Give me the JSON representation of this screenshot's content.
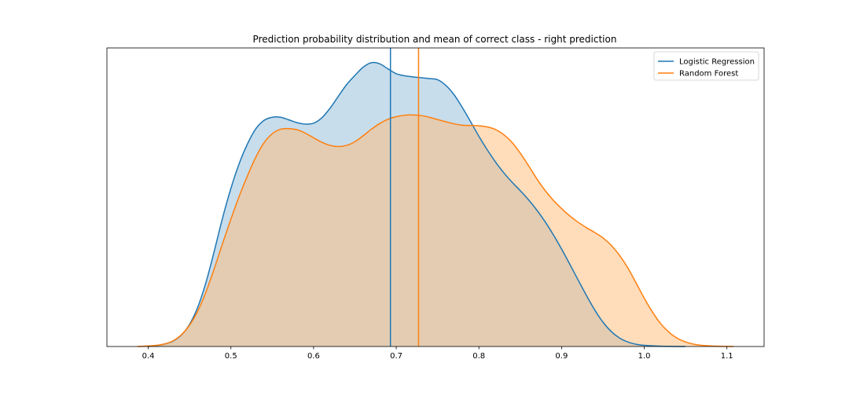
{
  "chart_data": {
    "type": "area",
    "title": "Prediction probability distribution and mean of correct class - right prediction",
    "xlabel": "",
    "ylabel": "",
    "xlim": [
      0.35,
      1.145
    ],
    "ylim": [
      0,
      1.0
    ],
    "y_ticks_visible": false,
    "grid": false,
    "legend_position": "top-right",
    "x_ticks": [
      "0.4",
      "0.5",
      "0.6",
      "0.7",
      "0.8",
      "0.9",
      "1.0",
      "1.1"
    ],
    "series": [
      {
        "name": "Logistic Regression",
        "color": "#1f77b4",
        "fill": "#1f77b4",
        "mean": 0.693,
        "points": [
          [
            0.4,
            0.0
          ],
          [
            0.41,
            0.003
          ],
          [
            0.42,
            0.009
          ],
          [
            0.43,
            0.019
          ],
          [
            0.44,
            0.04
          ],
          [
            0.45,
            0.078
          ],
          [
            0.46,
            0.139
          ],
          [
            0.47,
            0.227
          ],
          [
            0.48,
            0.337
          ],
          [
            0.49,
            0.453
          ],
          [
            0.5,
            0.556
          ],
          [
            0.51,
            0.643
          ],
          [
            0.52,
            0.712
          ],
          [
            0.53,
            0.765
          ],
          [
            0.54,
            0.795
          ],
          [
            0.55,
            0.806
          ],
          [
            0.56,
            0.806
          ],
          [
            0.57,
            0.797
          ],
          [
            0.58,
            0.787
          ],
          [
            0.59,
            0.782
          ],
          [
            0.6,
            0.785
          ],
          [
            0.61,
            0.804
          ],
          [
            0.62,
            0.838
          ],
          [
            0.63,
            0.88
          ],
          [
            0.64,
            0.921
          ],
          [
            0.65,
            0.953
          ],
          [
            0.66,
            0.982
          ],
          [
            0.67,
            0.998
          ],
          [
            0.68,
            0.994
          ],
          [
            0.69,
            0.976
          ],
          [
            0.7,
            0.959
          ],
          [
            0.71,
            0.952
          ],
          [
            0.72,
            0.948
          ],
          [
            0.73,
            0.945
          ],
          [
            0.74,
            0.942
          ],
          [
            0.75,
            0.938
          ],
          [
            0.76,
            0.918
          ],
          [
            0.77,
            0.885
          ],
          [
            0.78,
            0.84
          ],
          [
            0.79,
            0.79
          ],
          [
            0.8,
            0.739
          ],
          [
            0.81,
            0.692
          ],
          [
            0.82,
            0.649
          ],
          [
            0.83,
            0.611
          ],
          [
            0.84,
            0.578
          ],
          [
            0.85,
            0.548
          ],
          [
            0.86,
            0.516
          ],
          [
            0.87,
            0.48
          ],
          [
            0.88,
            0.439
          ],
          [
            0.89,
            0.393
          ],
          [
            0.9,
            0.343
          ],
          [
            0.91,
            0.289
          ],
          [
            0.92,
            0.234
          ],
          [
            0.93,
            0.18
          ],
          [
            0.94,
            0.129
          ],
          [
            0.95,
            0.086
          ],
          [
            0.96,
            0.053
          ],
          [
            0.97,
            0.03
          ],
          [
            0.98,
            0.016
          ],
          [
            0.99,
            0.008
          ],
          [
            1.0,
            0.004
          ],
          [
            1.02,
            0.001
          ],
          [
            1.05,
            0.0
          ]
        ]
      },
      {
        "name": "Random Forest",
        "color": "#ff7f0e",
        "fill": "#ffbb78",
        "mean": 0.727,
        "points": [
          [
            0.387,
            0.0
          ],
          [
            0.4,
            0.002
          ],
          [
            0.41,
            0.004
          ],
          [
            0.42,
            0.009
          ],
          [
            0.43,
            0.02
          ],
          [
            0.44,
            0.041
          ],
          [
            0.45,
            0.075
          ],
          [
            0.46,
            0.125
          ],
          [
            0.47,
            0.193
          ],
          [
            0.48,
            0.275
          ],
          [
            0.49,
            0.363
          ],
          [
            0.5,
            0.448
          ],
          [
            0.51,
            0.528
          ],
          [
            0.52,
            0.6
          ],
          [
            0.53,
            0.665
          ],
          [
            0.54,
            0.716
          ],
          [
            0.55,
            0.748
          ],
          [
            0.56,
            0.764
          ],
          [
            0.57,
            0.766
          ],
          [
            0.58,
            0.762
          ],
          [
            0.59,
            0.75
          ],
          [
            0.6,
            0.734
          ],
          [
            0.61,
            0.718
          ],
          [
            0.62,
            0.707
          ],
          [
            0.63,
            0.703
          ],
          [
            0.64,
            0.707
          ],
          [
            0.65,
            0.72
          ],
          [
            0.66,
            0.741
          ],
          [
            0.67,
            0.764
          ],
          [
            0.68,
            0.784
          ],
          [
            0.69,
            0.799
          ],
          [
            0.7,
            0.808
          ],
          [
            0.71,
            0.813
          ],
          [
            0.72,
            0.814
          ],
          [
            0.73,
            0.812
          ],
          [
            0.74,
            0.806
          ],
          [
            0.75,
            0.798
          ],
          [
            0.76,
            0.79
          ],
          [
            0.77,
            0.783
          ],
          [
            0.78,
            0.778
          ],
          [
            0.79,
            0.777
          ],
          [
            0.8,
            0.776
          ],
          [
            0.81,
            0.772
          ],
          [
            0.82,
            0.763
          ],
          [
            0.83,
            0.745
          ],
          [
            0.84,
            0.718
          ],
          [
            0.85,
            0.68
          ],
          [
            0.86,
            0.636
          ],
          [
            0.87,
            0.59
          ],
          [
            0.88,
            0.549
          ],
          [
            0.89,
            0.514
          ],
          [
            0.9,
            0.485
          ],
          [
            0.91,
            0.459
          ],
          [
            0.92,
            0.437
          ],
          [
            0.93,
            0.418
          ],
          [
            0.94,
            0.401
          ],
          [
            0.95,
            0.382
          ],
          [
            0.96,
            0.356
          ],
          [
            0.97,
            0.321
          ],
          [
            0.98,
            0.277
          ],
          [
            0.99,
            0.224
          ],
          [
            1.0,
            0.17
          ],
          [
            1.01,
            0.121
          ],
          [
            1.02,
            0.08
          ],
          [
            1.03,
            0.05
          ],
          [
            1.04,
            0.029
          ],
          [
            1.05,
            0.016
          ],
          [
            1.06,
            0.008
          ],
          [
            1.07,
            0.004
          ],
          [
            1.08,
            0.002
          ],
          [
            1.09,
            0.001
          ],
          [
            1.108,
            0.0
          ]
        ]
      }
    ]
  }
}
